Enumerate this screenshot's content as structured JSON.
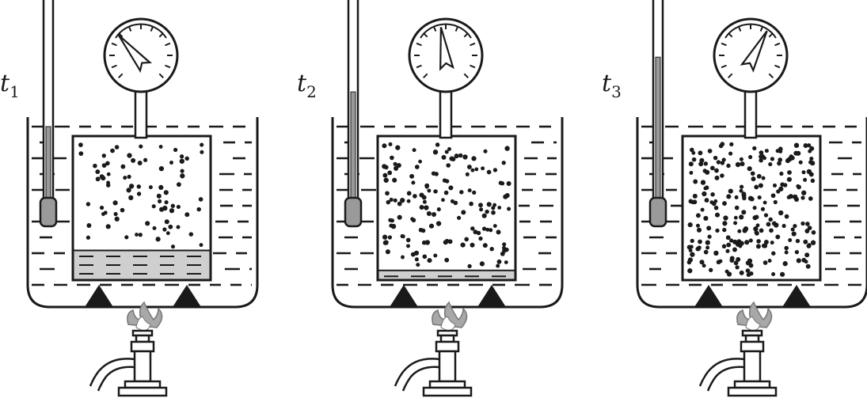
{
  "panels": [
    {
      "label": "t",
      "subscript": "1",
      "thermometer_level": 0.38,
      "gauge_angle_deg": -40,
      "liquid_level": 0.1,
      "vapor_density": 80,
      "flame": true
    },
    {
      "label": "t",
      "subscript": "2",
      "thermometer_level": 0.55,
      "gauge_angle_deg": -8,
      "liquid_level": 0.03,
      "vapor_density": 150,
      "flame": true
    },
    {
      "label": "t",
      "subscript": "3",
      "thermometer_level": 0.72,
      "gauge_angle_deg": 28,
      "liquid_level": 0.0,
      "vapor_density": 240,
      "flame": true
    }
  ],
  "colors": {
    "ink": "#1a1a1a",
    "liquid": "#cfcfcf",
    "mercury": "#9a9a9a",
    "flame": "#a8a8a8"
  }
}
